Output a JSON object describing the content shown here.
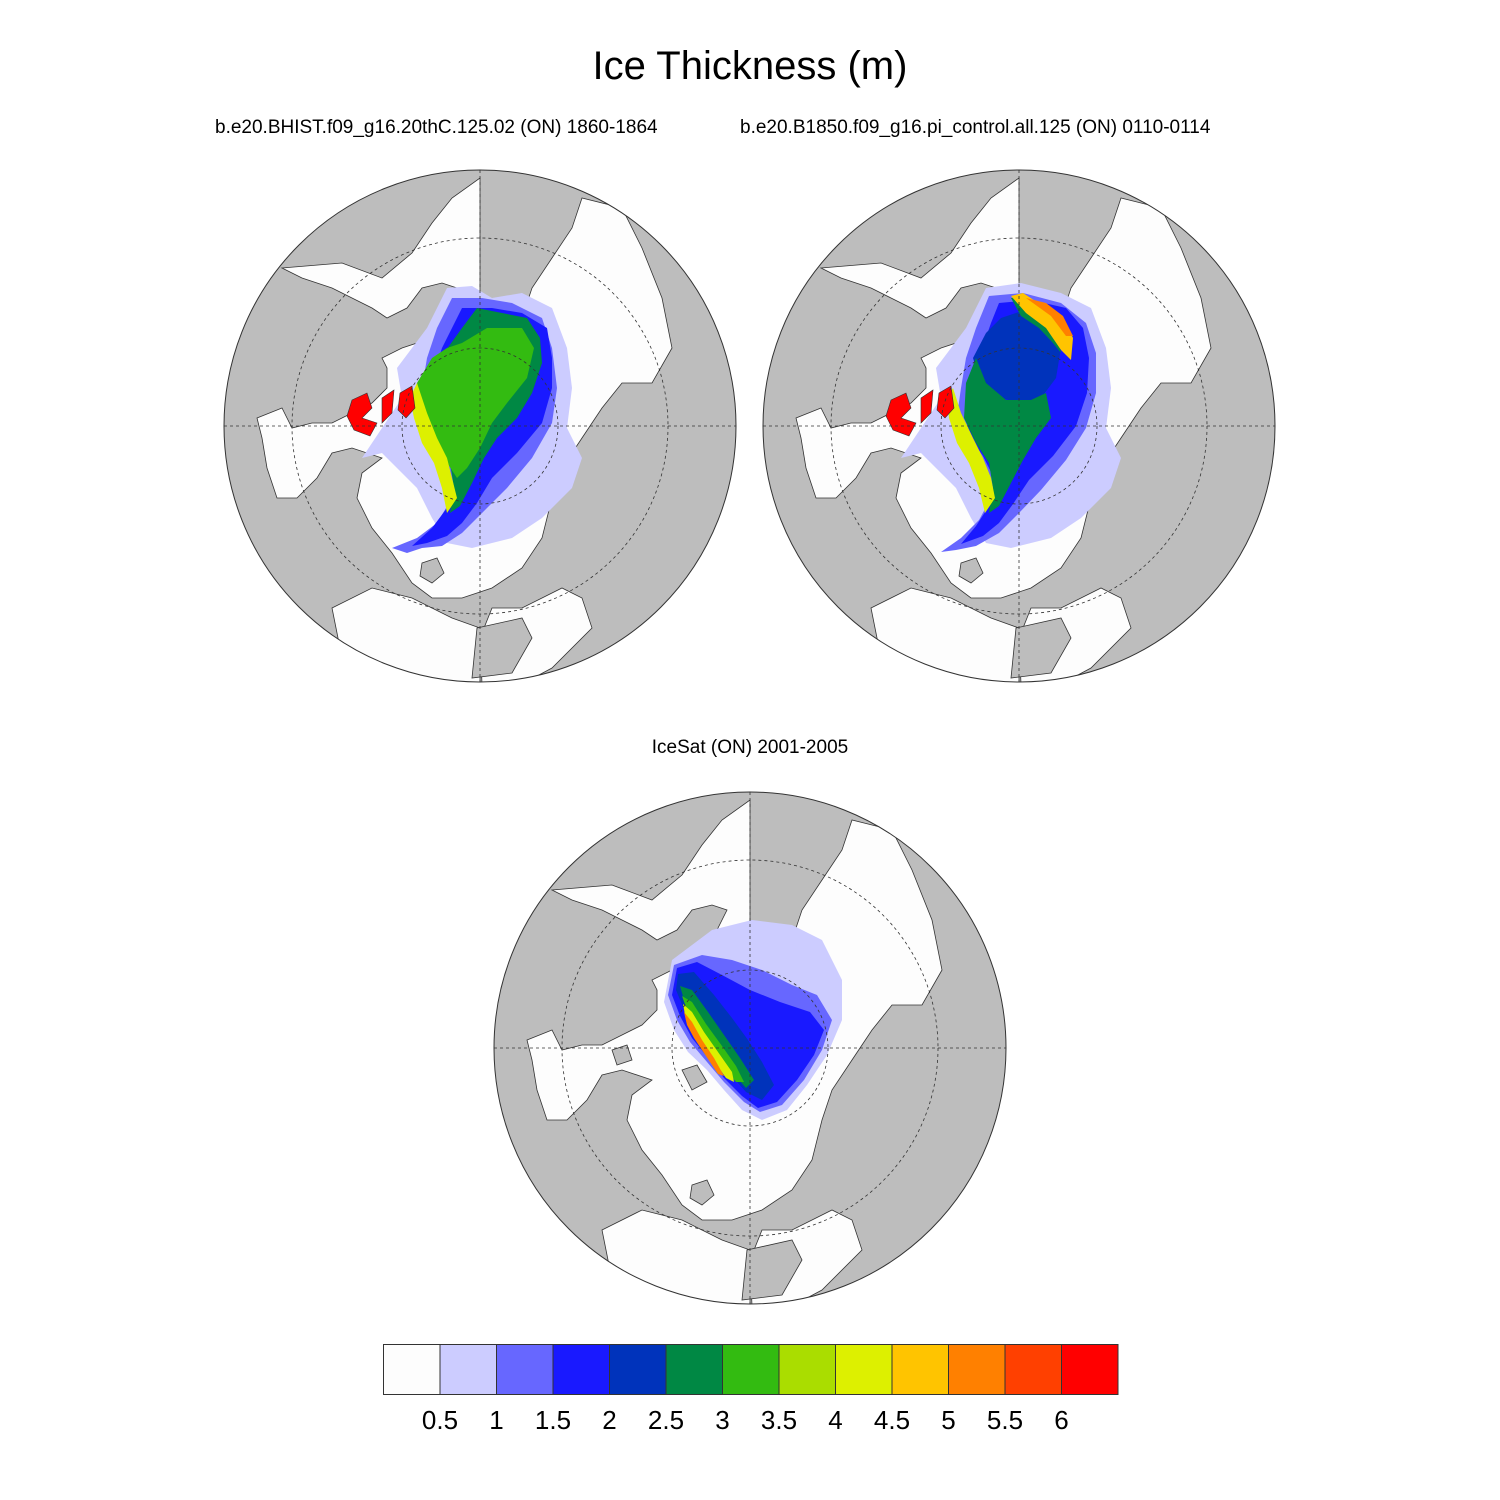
{
  "title": "Ice Thickness (m)",
  "panels": [
    {
      "subtitle": "b.e20.BHIST.f09_g16.20thC.125.02 (ON) 1860-1864"
    },
    {
      "subtitle": "b.e20.B1850.f09_g16.pi_control.all.125 (ON) 0110-0114"
    },
    {
      "subtitle": "IceSat (ON) 2001-2005"
    }
  ],
  "colorbar": {
    "levels": [
      "0.5",
      "1",
      "1.5",
      "2",
      "2.5",
      "3",
      "3.5",
      "4",
      "4.5",
      "5",
      "5.5",
      "6"
    ],
    "colors": [
      "#fdfdfd",
      "#ccccff",
      "#6767ff",
      "#1919ff",
      "#0033bb",
      "#008844",
      "#33bb11",
      "#aadd00",
      "#ddf000",
      "#ffc400",
      "#ff8000",
      "#ff4000",
      "#ff0000"
    ]
  },
  "map_colors": {
    "land": "#bdbdbd",
    "ocean": "#fdfdfd"
  }
}
